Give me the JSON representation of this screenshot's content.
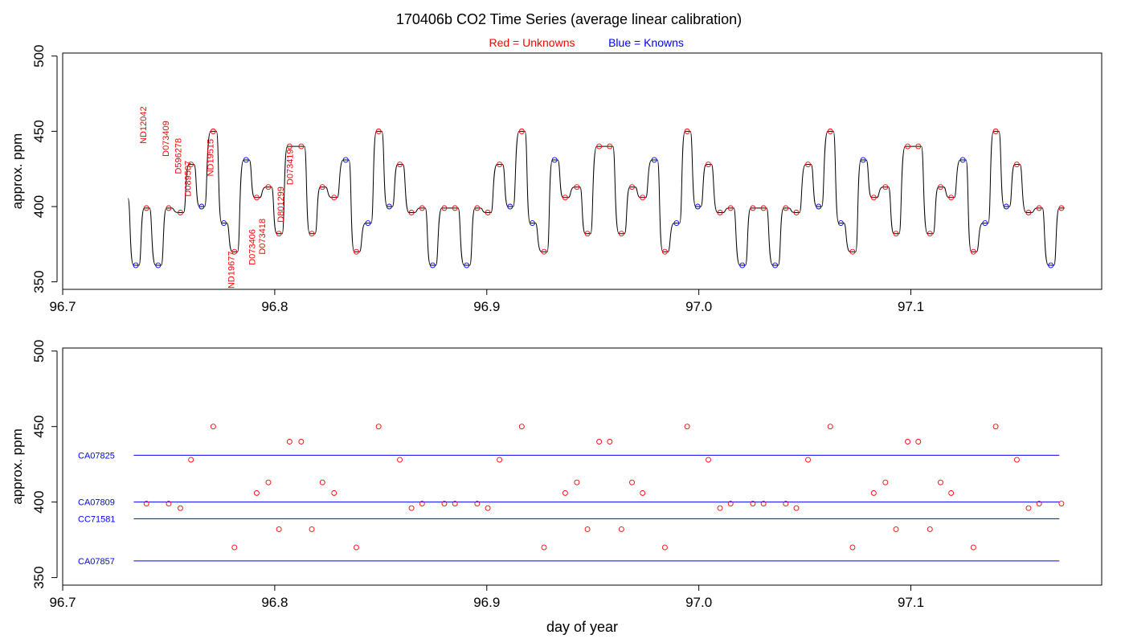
{
  "header": {
    "title": "170406b   CO2 Time Series (average linear calibration)",
    "legend_red": "Red = Unknowns",
    "legend_blue": "Blue = Knowns"
  },
  "colors": {
    "unknown": "#ff0000",
    "known": "#0000ff",
    "trace": "#000000"
  },
  "chart_data": [
    {
      "type": "line",
      "title": "",
      "xlabel": "",
      "ylabel": "approx. ppm",
      "xlim": [
        96.7,
        97.19
      ],
      "ylim": [
        345,
        502
      ],
      "x_ticks": [
        "96.7",
        "96.8",
        "96.9",
        "97.0",
        "97.1"
      ],
      "y_ticks": [
        "350",
        "400",
        "450",
        "500"
      ],
      "trace_start": [
        96.7308,
        405.5
      ],
      "unknowns": [
        [
          96.7395,
          399
        ],
        [
          96.75,
          399
        ],
        [
          96.7555,
          396
        ],
        [
          96.7605,
          428
        ],
        [
          96.771,
          450
        ],
        [
          96.781,
          370
        ],
        [
          96.7915,
          406
        ],
        [
          96.797,
          413
        ],
        [
          96.802,
          382
        ],
        [
          96.807,
          440
        ],
        [
          96.8125,
          440
        ],
        [
          96.8175,
          382
        ],
        [
          96.8225,
          413
        ],
        [
          96.828,
          406
        ],
        [
          96.8385,
          370
        ],
        [
          96.849,
          450
        ],
        [
          96.859,
          428
        ],
        [
          96.8645,
          396
        ],
        [
          96.8695,
          399
        ],
        [
          96.88,
          399
        ],
        [
          96.885,
          399
        ],
        [
          96.8955,
          399
        ],
        [
          96.9005,
          396
        ],
        [
          96.906,
          428
        ],
        [
          96.9165,
          450
        ],
        [
          96.927,
          370
        ],
        [
          96.937,
          406
        ],
        [
          96.9425,
          413
        ],
        [
          96.9475,
          382
        ],
        [
          96.953,
          440
        ],
        [
          96.958,
          440
        ],
        [
          96.9635,
          382
        ],
        [
          96.9685,
          413
        ],
        [
          96.9735,
          406
        ],
        [
          96.984,
          370
        ],
        [
          96.9945,
          450
        ],
        [
          97.0045,
          428
        ],
        [
          97.01,
          396
        ],
        [
          97.015,
          399
        ],
        [
          97.0255,
          399
        ],
        [
          97.0305,
          399
        ],
        [
          97.041,
          399
        ],
        [
          97.046,
          396
        ],
        [
          97.0515,
          428
        ],
        [
          97.062,
          450
        ],
        [
          97.0725,
          370
        ],
        [
          97.0825,
          406
        ],
        [
          97.088,
          413
        ],
        [
          97.093,
          382
        ],
        [
          97.0985,
          440
        ],
        [
          97.1035,
          440
        ],
        [
          97.109,
          382
        ],
        [
          97.114,
          413
        ],
        [
          97.119,
          406
        ],
        [
          97.1295,
          370
        ],
        [
          97.14,
          450
        ],
        [
          97.15,
          428
        ],
        [
          97.1555,
          396
        ],
        [
          97.1605,
          399
        ],
        [
          97.171,
          399
        ]
      ],
      "knowns": [
        [
          96.7345,
          361
        ],
        [
          96.745,
          361
        ],
        [
          96.7655,
          400
        ],
        [
          96.776,
          389
        ],
        [
          96.7865,
          431
        ],
        [
          96.8335,
          431
        ],
        [
          96.844,
          389
        ],
        [
          96.854,
          400
        ],
        [
          96.8745,
          361
        ],
        [
          96.8905,
          361
        ],
        [
          96.911,
          400
        ],
        [
          96.9215,
          389
        ],
        [
          96.932,
          431
        ],
        [
          96.979,
          431
        ],
        [
          96.9895,
          389
        ],
        [
          96.9995,
          400
        ],
        [
          97.0205,
          361
        ],
        [
          97.036,
          361
        ],
        [
          97.0565,
          400
        ],
        [
          97.067,
          389
        ],
        [
          97.0775,
          431
        ],
        [
          97.1245,
          431
        ],
        [
          97.135,
          389
        ],
        [
          97.145,
          400
        ],
        [
          97.166,
          361
        ]
      ],
      "unknown_labels": [
        {
          "text": "ND12042",
          "x": 96.7395,
          "y": 399
        },
        {
          "text": "D073409",
          "x": 96.75,
          "y": 399
        },
        {
          "text": "D596278",
          "x": 96.7555,
          "y": 396
        },
        {
          "text": "D089507",
          "x": 96.7605,
          "y": 428
        },
        {
          "text": "ND19515",
          "x": 96.771,
          "y": 450
        },
        {
          "text": "ND19677",
          "x": 96.781,
          "y": 370
        },
        {
          "text": "D073406",
          "x": 96.7915,
          "y": 406
        },
        {
          "text": "D073418",
          "x": 96.797,
          "y": 413
        },
        {
          "text": "D801299",
          "x": 96.802,
          "y": 382
        },
        {
          "text": "D073419",
          "x": 96.807,
          "y": 440
        }
      ]
    },
    {
      "type": "scatter",
      "title": "",
      "xlabel": "day of year",
      "ylabel": "approx. ppm",
      "xlim": [
        96.7,
        97.19
      ],
      "ylim": [
        345,
        502
      ],
      "x_ticks": [
        "96.7",
        "96.8",
        "96.9",
        "97.0",
        "97.1"
      ],
      "y_ticks": [
        "350",
        "400",
        "450",
        "500"
      ],
      "reference_lines": [
        {
          "name": "CA07825",
          "y": 431,
          "x": [
            96.7335,
            97.17
          ]
        },
        {
          "name": "CA07809",
          "y": 400,
          "x": [
            96.7335,
            97.17
          ]
        },
        {
          "name": "CC71581",
          "y": 389,
          "x": [
            96.7335,
            97.17
          ]
        },
        {
          "name": "CA07857",
          "y": 361,
          "x": [
            96.7335,
            97.17
          ]
        }
      ],
      "points_from": "unknowns"
    }
  ]
}
